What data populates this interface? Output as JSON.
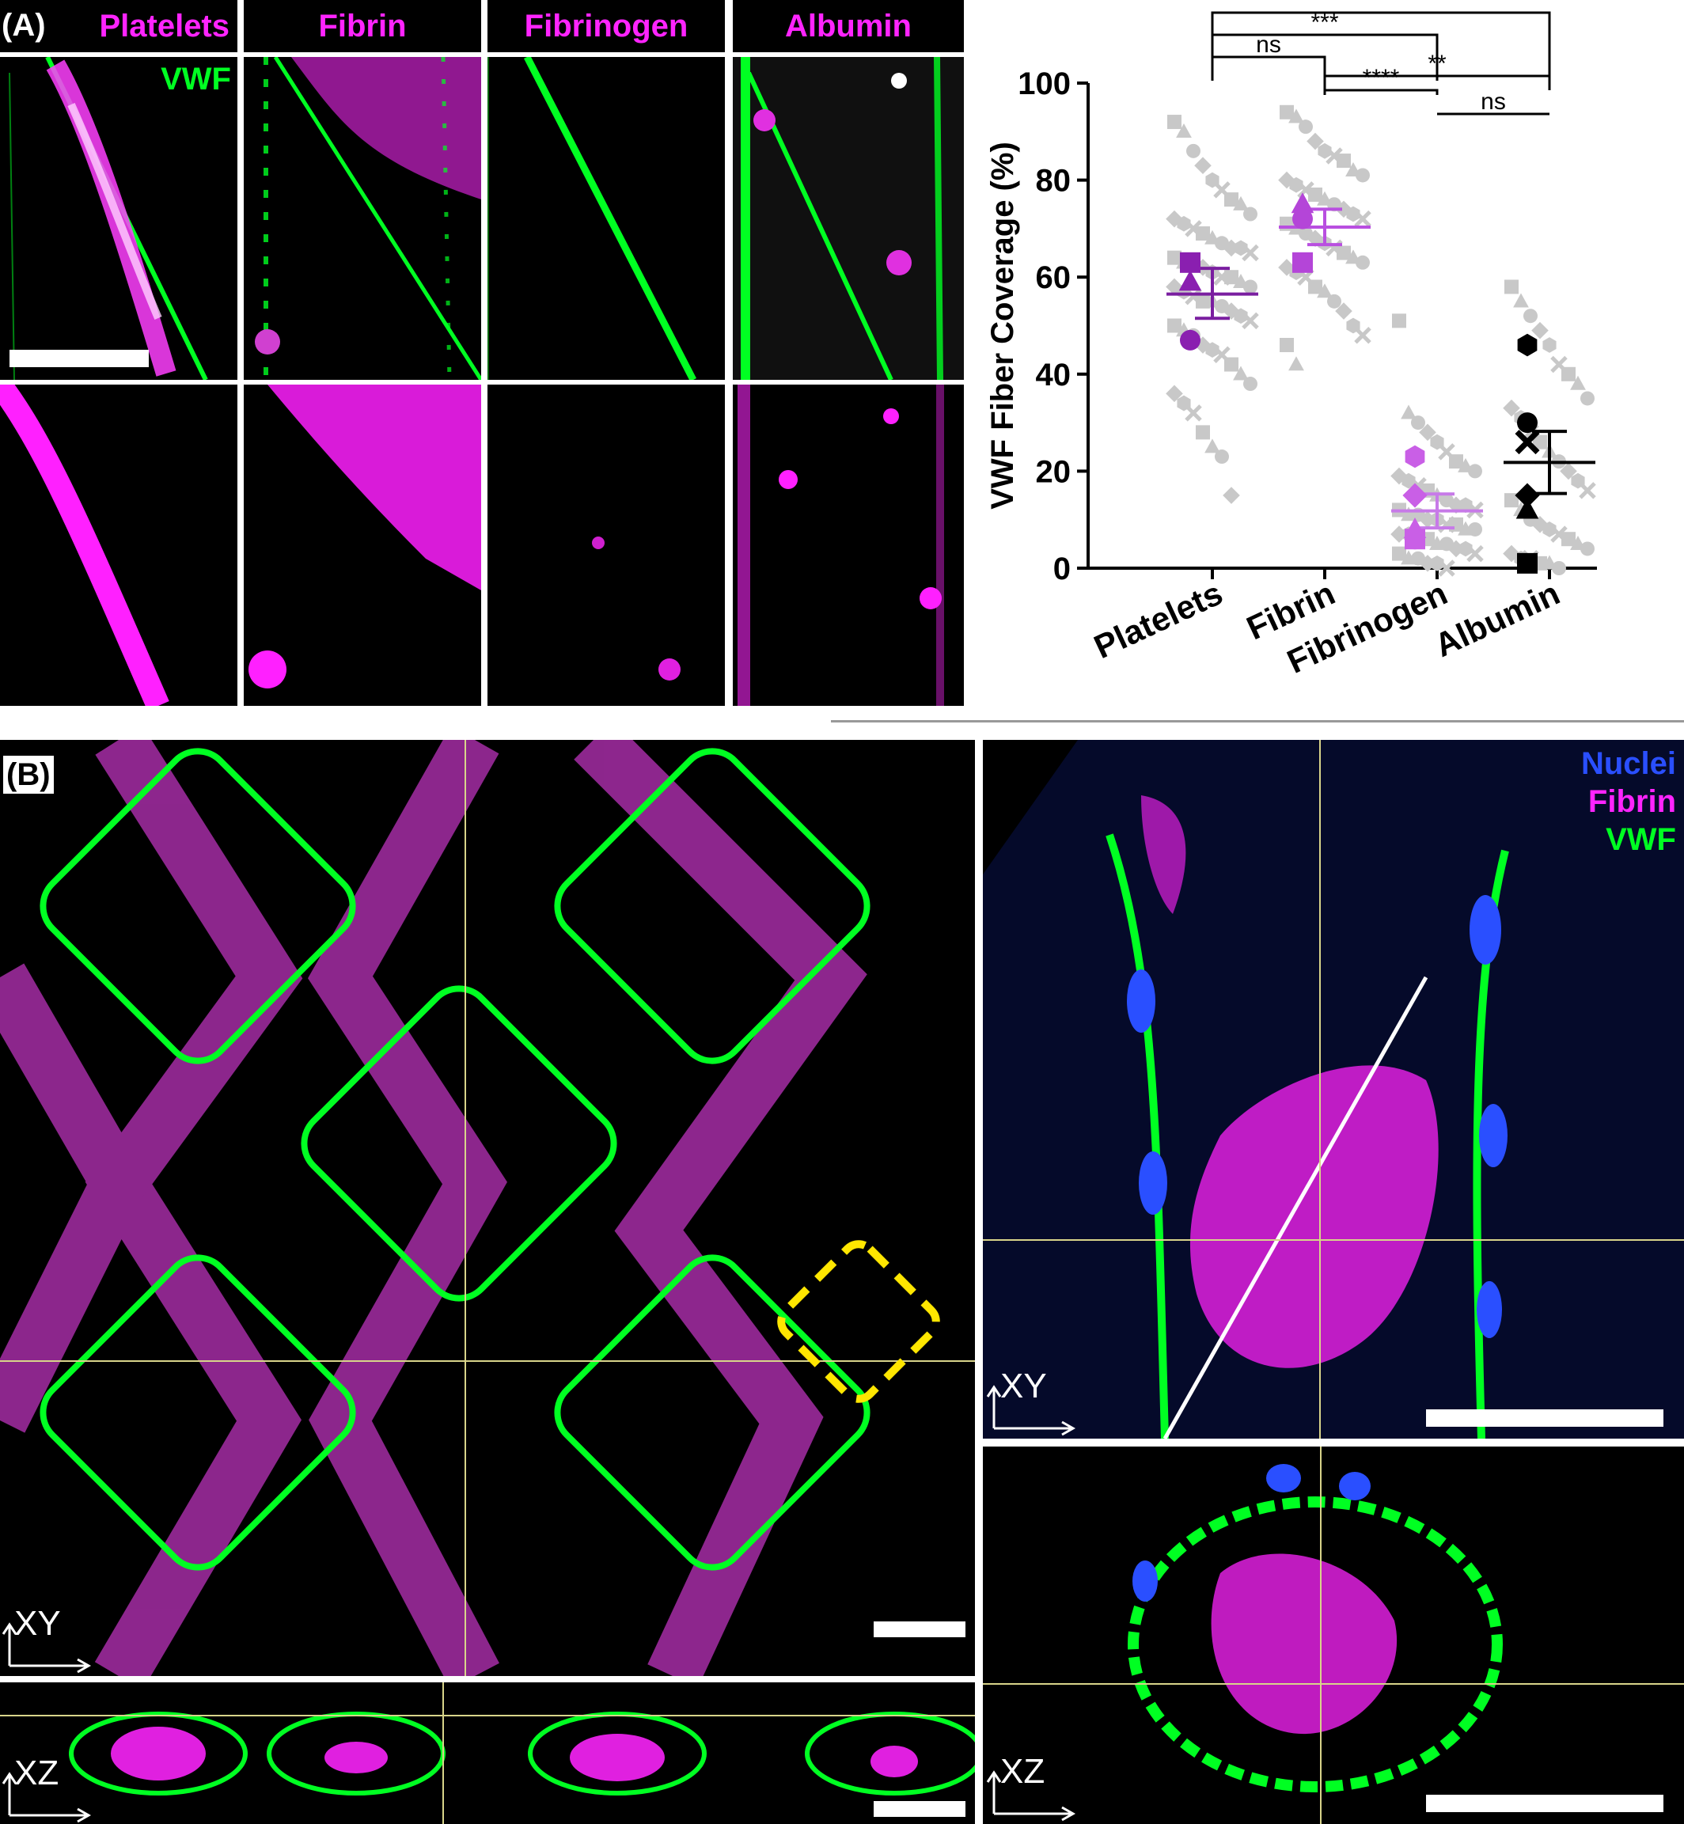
{
  "panelA": {
    "label": "(A)",
    "headers": [
      "Platelets",
      "Fibrin",
      "Fibrinogen",
      "Albumin"
    ],
    "vwf_label": "VWF"
  },
  "panelB": {
    "label": "(B)",
    "legend": {
      "nuclei": "Nuclei",
      "fibrin": "Fibrin",
      "vwf": "VWF"
    },
    "axis_xy": "XY",
    "axis_xz": "XZ"
  },
  "colors": {
    "magenta": "#ff24ff",
    "green": "#00ff22",
    "blue": "#2a4fff",
    "yellow_box": "#ffe600",
    "crosshair": "#d8d48a",
    "purple_dark": "#7a1ea0",
    "purple_light": "#c24fe0"
  },
  "chart_data": {
    "type": "scatter",
    "ylabel": "VWF Fiber Coverage (%)",
    "categories": [
      "Platelets",
      "Fibrin",
      "Fibrinogen",
      "Albumin"
    ],
    "ylim": [
      0,
      100
    ],
    "yticks": [
      0,
      20,
      40,
      60,
      80,
      100
    ],
    "means": [
      56.5,
      70.3,
      11.8,
      21.8
    ],
    "error": [
      [
        51.5,
        61.8
      ],
      [
        66.7,
        74.0
      ],
      [
        8.3,
        15.3
      ],
      [
        15.4,
        28.2
      ]
    ],
    "replicate_points": [
      {
        "category": "Platelets",
        "shape": "square",
        "value": 63
      },
      {
        "category": "Platelets",
        "shape": "triangle",
        "value": 59
      },
      {
        "category": "Platelets",
        "shape": "circle",
        "value": 47
      },
      {
        "category": "Fibrin",
        "shape": "triangle",
        "value": 75
      },
      {
        "category": "Fibrin",
        "shape": "circle",
        "value": 72
      },
      {
        "category": "Fibrin",
        "shape": "square",
        "value": 63
      },
      {
        "category": "Fibrinogen",
        "shape": "hexagon",
        "value": 23
      },
      {
        "category": "Fibrinogen",
        "shape": "diamond",
        "value": 15
      },
      {
        "category": "Fibrinogen",
        "shape": "triangle",
        "value": 8
      },
      {
        "category": "Fibrinogen",
        "shape": "circle",
        "value": 6
      },
      {
        "category": "Fibrinogen",
        "shape": "square",
        "value": 6
      },
      {
        "category": "Albumin",
        "shape": "hexagon",
        "value": 46
      },
      {
        "category": "Albumin",
        "shape": "circle",
        "value": 30
      },
      {
        "category": "Albumin",
        "shape": "cross",
        "value": 26
      },
      {
        "category": "Albumin",
        "shape": "diamond",
        "value": 15
      },
      {
        "category": "Albumin",
        "shape": "triangle",
        "value": 12
      },
      {
        "category": "Albumin",
        "shape": "square",
        "value": 1
      }
    ],
    "raw_points": {
      "Platelets": [
        92,
        90,
        86,
        83,
        80,
        78,
        76,
        75,
        73,
        72,
        71,
        70,
        69,
        68,
        67,
        66,
        66,
        65,
        64,
        63,
        63,
        62,
        61,
        60,
        60,
        59,
        58,
        58,
        57,
        56,
        55,
        55,
        54,
        53,
        52,
        51,
        50,
        49,
        48,
        46,
        45,
        44,
        42,
        40,
        38,
        36,
        34,
        32,
        28,
        25,
        23,
        15
      ],
      "Fibrin": [
        94,
        93,
        91,
        88,
        86,
        85,
        84,
        82,
        81,
        80,
        79,
        78,
        77,
        76,
        75,
        74,
        73,
        72,
        71,
        70,
        69,
        68,
        67,
        66,
        65,
        64,
        63,
        62,
        61,
        60,
        58,
        57,
        55,
        53,
        50,
        48,
        46,
        42
      ],
      "Fibrinogen": [
        51,
        32,
        30,
        28,
        26,
        24,
        22,
        21,
        20,
        19,
        18,
        17,
        16,
        15,
        14,
        13,
        13,
        12,
        12,
        11,
        11,
        10,
        10,
        9,
        9,
        8,
        8,
        7,
        7,
        6,
        6,
        5,
        5,
        4,
        4,
        3,
        3,
        2,
        2,
        1,
        1,
        0
      ],
      "Albumin": [
        58,
        55,
        52,
        49,
        46,
        42,
        40,
        38,
        35,
        33,
        31,
        28,
        26,
        24,
        22,
        20,
        18,
        16,
        14,
        12,
        10,
        9,
        8,
        7,
        6,
        5,
        4,
        3,
        2,
        2,
        1,
        1,
        0
      ]
    },
    "significance": [
      {
        "from": "Platelets",
        "to": "Albumin",
        "label": "**"
      },
      {
        "from": "Platelets",
        "to": "Fibrinogen",
        "label": "***"
      },
      {
        "from": "Platelets",
        "to": "Fibrin",
        "label": "ns"
      },
      {
        "from": "Fibrin",
        "to": "Albumin",
        "label": "**"
      },
      {
        "from": "Fibrin",
        "to": "Fibrinogen",
        "label": "****"
      },
      {
        "from": "Fibrinogen",
        "to": "Albumin",
        "label": "ns"
      }
    ]
  }
}
